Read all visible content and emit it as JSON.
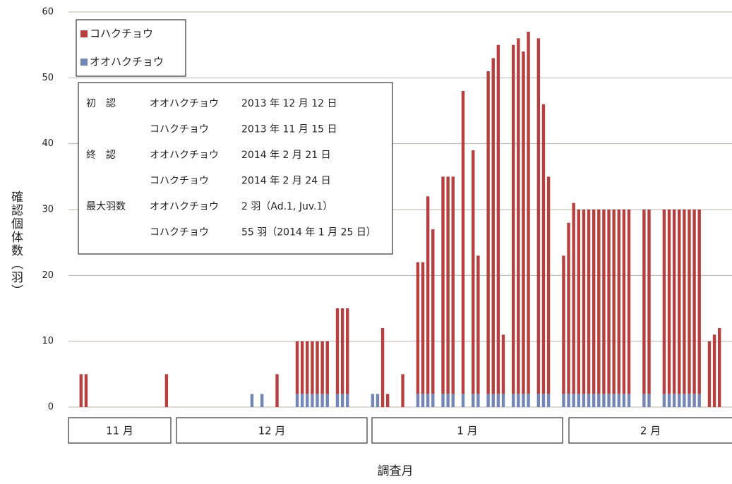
{
  "chart_data": {
    "type": "stacked_bar",
    "ylabel": "確認個体数（羽）",
    "xlabel": "調査月",
    "ylim": [
      0,
      60
    ],
    "yticks": [
      0,
      10,
      20,
      30,
      40,
      50,
      60
    ],
    "grid": true,
    "legend": "upper left",
    "month_labels": [
      "11 月",
      "12 月",
      "1 月",
      "2 月"
    ],
    "categories": [
      null,
      null,
      null,
      null,
      null,
      null,
      null,
      null,
      null,
      null,
      null,
      null,
      null,
      null,
      null,
      null,
      null,
      null,
      null,
      null,
      null,
      null,
      null,
      null,
      null,
      null,
      null,
      null,
      null,
      null,
      null,
      null,
      null,
      null,
      null,
      null,
      null,
      null,
      null,
      null,
      null,
      null,
      null,
      null,
      null,
      null,
      null,
      null,
      null,
      null,
      null,
      null,
      null,
      null,
      null,
      null,
      null,
      null,
      null,
      null,
      null,
      null,
      null,
      null,
      null,
      null,
      null,
      null,
      null,
      null,
      null,
      null,
      null,
      null,
      null,
      null,
      null,
      null,
      null,
      null,
      null,
      null,
      null,
      null,
      null,
      null,
      null,
      null,
      null,
      null,
      null,
      null,
      null,
      null,
      null,
      null,
      null,
      null,
      null,
      null,
      null,
      null,
      null,
      null,
      null,
      null,
      null,
      null,
      null,
      null,
      null,
      null,
      null,
      null,
      null,
      null,
      null,
      null,
      null,
      null,
      null,
      null,
      null,
      null,
      null,
      null,
      null,
      null,
      null,
      null,
      null,
      null
    ],
    "series": [
      {
        "name": "オオハクチョウ",
        "color": "#7386b5",
        "values": [
          null,
          null,
          null,
          null,
          null,
          null,
          null,
          null,
          null,
          null,
          null,
          null,
          null,
          null,
          null,
          null,
          null,
          null,
          null,
          null,
          null,
          null,
          null,
          null,
          null,
          null,
          null,
          null,
          null,
          null,
          null,
          null,
          null,
          null,
          null,
          null,
          2,
          null,
          2,
          null,
          null,
          null,
          null,
          null,
          null,
          2,
          2,
          2,
          2,
          2,
          2,
          2,
          null,
          2,
          2,
          2,
          null,
          null,
          null,
          null,
          2,
          2,
          null,
          null,
          null,
          null,
          null,
          null,
          null,
          2,
          2,
          2,
          2,
          null,
          2,
          2,
          2,
          null,
          2,
          null,
          2,
          2,
          null,
          2,
          2,
          2,
          2,
          null,
          2,
          2,
          2,
          2,
          null,
          2,
          2,
          2,
          null,
          null,
          2,
          2,
          2,
          2,
          2,
          2,
          2,
          2,
          2,
          2,
          2,
          2,
          2,
          2,
          null,
          null,
          2,
          2,
          null,
          null,
          2,
          2,
          2,
          2,
          2,
          2,
          2,
          2,
          null,
          null,
          null,
          null,
          null,
          null
        ]
      },
      {
        "name": "コハクチョウ",
        "color": "#b5403f",
        "values": [
          null,
          null,
          5,
          5,
          null,
          null,
          null,
          null,
          null,
          null,
          null,
          null,
          null,
          null,
          null,
          null,
          null,
          null,
          null,
          5,
          null,
          null,
          null,
          null,
          null,
          null,
          null,
          null,
          null,
          null,
          null,
          null,
          null,
          null,
          null,
          null,
          null,
          null,
          null,
          null,
          null,
          5,
          null,
          null,
          null,
          8,
          8,
          8,
          8,
          8,
          8,
          8,
          null,
          13,
          13,
          13,
          null,
          null,
          null,
          null,
          null,
          null,
          12,
          2,
          null,
          null,
          5,
          null,
          null,
          20,
          20,
          30,
          25,
          null,
          33,
          33,
          33,
          null,
          46,
          null,
          37,
          21,
          null,
          49,
          51,
          53,
          9,
          null,
          53,
          54,
          52,
          55,
          null,
          54,
          44,
          33,
          null,
          null,
          21,
          26,
          29,
          28,
          28,
          28,
          28,
          28,
          28,
          28,
          28,
          28,
          28,
          28,
          null,
          null,
          28,
          28,
          null,
          null,
          28,
          28,
          28,
          28,
          28,
          28,
          28,
          28,
          null,
          10,
          11,
          12,
          null,
          null
        ]
      }
    ],
    "info_table": [
      {
        "label": "初　認",
        "species": "オオハクチョウ",
        "text": "2013 年 12 月 12 日"
      },
      {
        "species": "コハクチョウ",
        "text": "2013 年 11 月 15 日"
      },
      {
        "label": "終　認",
        "species": "オオハクチョウ",
        "text": "2014 年 2 月 21 日"
      },
      {
        "species": "コハクチョウ",
        "text": "2014 年 2 月 24 日"
      },
      {
        "label": "最大羽数",
        "species": "オオハクチョウ",
        "text": "2 羽（Ad.1, Juv.1）"
      },
      {
        "species": "コハクチョウ",
        "text": "55 羽（2014 年 1 月 25 日）"
      }
    ]
  }
}
